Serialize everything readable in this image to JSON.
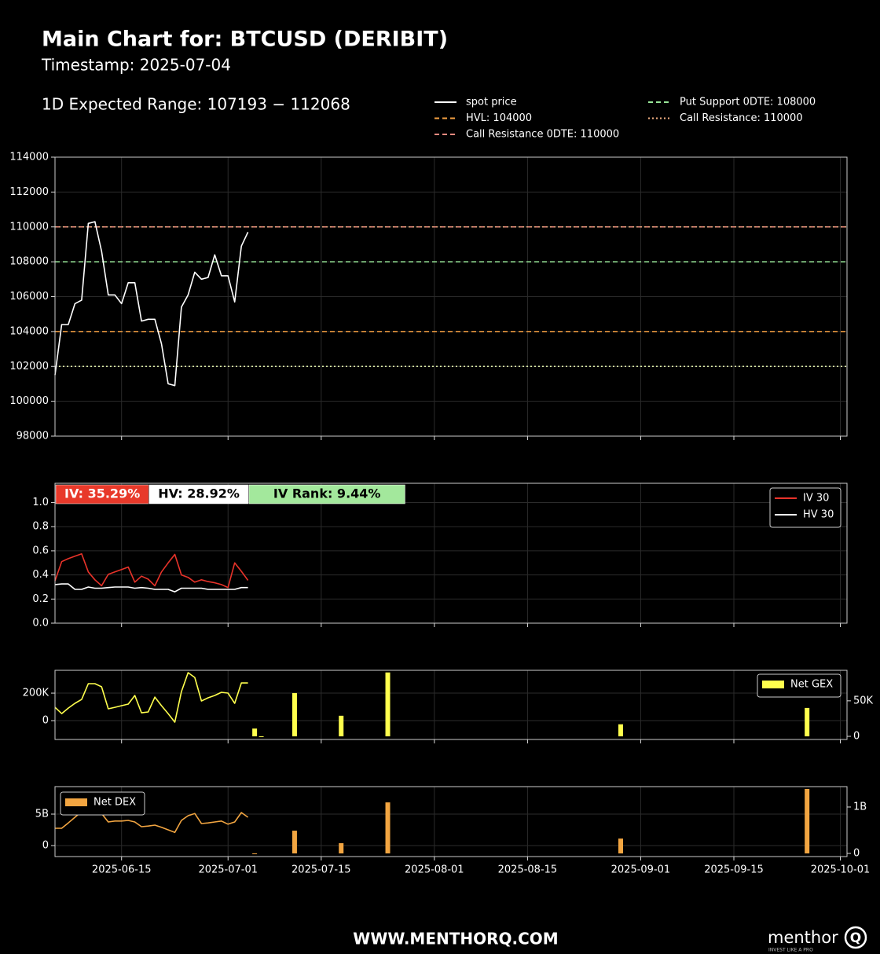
{
  "chart_data": [
    {
      "type": "line",
      "title": "Main Chart for: BTCUSD (DERIBIT)",
      "subtitle": "Timestamp: 2025-07-04",
      "annotation": "1D Expected Range: 107193 − 112068",
      "xlim": [
        "2025-06-05",
        "2025-10-02"
      ],
      "ylim": [
        98000,
        114000
      ],
      "yticks": [
        98000,
        100000,
        102000,
        104000,
        106000,
        108000,
        110000,
        112000,
        114000
      ],
      "grid": true,
      "x": [
        "2025-06-05",
        "2025-06-06",
        "2025-06-07",
        "2025-06-08",
        "2025-06-09",
        "2025-06-10",
        "2025-06-11",
        "2025-06-12",
        "2025-06-13",
        "2025-06-14",
        "2025-06-15",
        "2025-06-16",
        "2025-06-17",
        "2025-06-18",
        "2025-06-19",
        "2025-06-20",
        "2025-06-21",
        "2025-06-22",
        "2025-06-23",
        "2025-06-24",
        "2025-06-25",
        "2025-06-26",
        "2025-06-27",
        "2025-06-28",
        "2025-06-29",
        "2025-06-30",
        "2025-07-01",
        "2025-07-02",
        "2025-07-03",
        "2025-07-04"
      ],
      "series": [
        {
          "name": "spot price",
          "color": "#ffffff",
          "kind": "line",
          "values": [
            101500,
            104400,
            104400,
            105600,
            105800,
            110200,
            110300,
            108600,
            106100,
            106100,
            105600,
            106800,
            106800,
            104600,
            104700,
            104700,
            103300,
            101000,
            100900,
            105400,
            106100,
            107400,
            107000,
            107100,
            108400,
            107200,
            107200,
            105700,
            108900,
            109700
          ]
        }
      ],
      "levels": [
        {
          "name": "HVL: 104000",
          "value": 104000,
          "color": "#f5a142",
          "style": "dashed"
        },
        {
          "name": "Call Resistance 0DTE: 110000",
          "value": 110000,
          "color": "#f08a80",
          "style": "dashed"
        },
        {
          "name": "Put Support 0DTE: 108000",
          "value": 108000,
          "color": "#98e698",
          "style": "dashed"
        },
        {
          "name": "Call Resistance: 110000",
          "value": 110000,
          "color": "#f4b183",
          "style": "dotted"
        },
        {
          "value": 102000,
          "color": "#e0f0a8",
          "style": "dotted"
        }
      ]
    },
    {
      "type": "line",
      "xlim": [
        "2025-06-05",
        "2025-10-02"
      ],
      "ylim": [
        0,
        1.16
      ],
      "yticks": [
        {
          "value": 0,
          "label": "0.0"
        },
        0.2,
        0.4,
        0.6,
        0.8,
        {
          "value": 1,
          "label": "1.0"
        }
      ],
      "grid": true,
      "legend": "upper right",
      "badges": [
        {
          "text": "IV: 35.29%",
          "color": "#e8392a",
          "text_color": "#ffffff"
        },
        {
          "text": "HV: 28.92%",
          "color": "#ffffff",
          "text_color": "#000000"
        },
        {
          "text": "IV Rank: 9.44%",
          "color": "#a3e89c",
          "text_color": "#000000"
        }
      ],
      "x": [
        "2025-06-05",
        "2025-06-06",
        "2025-06-07",
        "2025-06-08",
        "2025-06-09",
        "2025-06-10",
        "2025-06-11",
        "2025-06-12",
        "2025-06-13",
        "2025-06-14",
        "2025-06-15",
        "2025-06-16",
        "2025-06-17",
        "2025-06-18",
        "2025-06-19",
        "2025-06-20",
        "2025-06-21",
        "2025-06-22",
        "2025-06-23",
        "2025-06-24",
        "2025-06-25",
        "2025-06-26",
        "2025-06-27",
        "2025-06-28",
        "2025-06-29",
        "2025-06-30",
        "2025-07-01",
        "2025-07-02",
        "2025-07-03",
        "2025-07-04"
      ],
      "series": [
        {
          "name": "IV 30",
          "color": "#e8332a",
          "kind": "line",
          "values": [
            0.35,
            0.51,
            0.535,
            0.555,
            0.575,
            0.425,
            0.36,
            0.31,
            0.405,
            0.425,
            0.445,
            0.465,
            0.34,
            0.39,
            0.365,
            0.31,
            0.425,
            0.5,
            0.57,
            0.4,
            0.38,
            0.34,
            0.36,
            0.345,
            0.335,
            0.32,
            0.295,
            0.5,
            0.43,
            0.355
          ]
        },
        {
          "name": "HV 30",
          "color": "#ffffff",
          "kind": "line",
          "values": [
            0.32,
            0.325,
            0.325,
            0.28,
            0.28,
            0.3,
            0.29,
            0.29,
            0.295,
            0.3,
            0.3,
            0.3,
            0.29,
            0.295,
            0.29,
            0.28,
            0.28,
            0.28,
            0.26,
            0.29,
            0.29,
            0.29,
            0.29,
            0.28,
            0.28,
            0.28,
            0.28,
            0.28,
            0.295,
            0.295
          ]
        }
      ]
    },
    {
      "type": "bar",
      "xlim": [
        "2025-06-05",
        "2025-10-02"
      ],
      "ylim": [
        -137000,
        366000
      ],
      "y2lim": [
        -4400,
        93000
      ],
      "yticks": [
        0,
        {
          "value": 200000,
          "label": "200K"
        }
      ],
      "y2ticks": [
        0,
        {
          "value": 50000,
          "label": "50K"
        }
      ],
      "grid": true,
      "legend": "upper right",
      "series": [
        {
          "color": "#ffff4d",
          "kind": "line",
          "x": [
            "2025-06-05",
            "2025-06-06",
            "2025-06-07",
            "2025-06-08",
            "2025-06-09",
            "2025-06-10",
            "2025-06-11",
            "2025-06-12",
            "2025-06-13",
            "2025-06-14",
            "2025-06-15",
            "2025-06-16",
            "2025-06-17",
            "2025-06-18",
            "2025-06-19",
            "2025-06-20",
            "2025-06-21",
            "2025-06-22",
            "2025-06-23",
            "2025-06-24",
            "2025-06-25",
            "2025-06-26",
            "2025-06-27",
            "2025-06-28",
            "2025-06-29",
            "2025-06-30",
            "2025-07-01",
            "2025-07-02",
            "2025-07-03",
            "2025-07-04"
          ],
          "values": [
            97000,
            51000,
            91000,
            126000,
            154000,
            269000,
            269000,
            246000,
            86000,
            97000,
            109000,
            120000,
            183000,
            57000,
            63000,
            171000,
            109000,
            51000,
            -11000,
            211000,
            349000,
            314000,
            143000,
            166000,
            183000,
            206000,
            200000,
            126000,
            274000,
            274000
          ]
        },
        {
          "name": "Net GEX",
          "color": "#ffff4d",
          "kind": "bar",
          "axis": "y2",
          "x": [
            "2025-07-05",
            "2025-07-06",
            "2025-07-11",
            "2025-07-18",
            "2025-07-25",
            "2025-08-29",
            "2025-09-26"
          ],
          "values": [
            11000,
            -1000,
            61000,
            29000,
            90000,
            17000,
            40000
          ]
        }
      ]
    },
    {
      "type": "bar",
      "xlim": [
        "2025-06-05",
        "2025-10-02"
      ],
      "ylim": [
        -1750000000,
        9375000000
      ],
      "y2lim": [
        -68000000,
        1440000000
      ],
      "yticks": [
        0,
        {
          "value": 5000000000,
          "label": "5B"
        }
      ],
      "y2ticks": [
        0,
        {
          "value": 1000000000,
          "label": "1B"
        }
      ],
      "grid": true,
      "legend": "upper left",
      "xticks": [
        "2025-06-15",
        "2025-07-01",
        "2025-07-15",
        "2025-08-01",
        "2025-08-15",
        "2025-09-01",
        "2025-09-15",
        "2025-10-01"
      ],
      "series": [
        {
          "color": "#f2a541",
          "kind": "line",
          "x": [
            "2025-06-05",
            "2025-06-06",
            "2025-06-07",
            "2025-06-08",
            "2025-06-09",
            "2025-06-10",
            "2025-06-11",
            "2025-06-12",
            "2025-06-13",
            "2025-06-14",
            "2025-06-15",
            "2025-06-16",
            "2025-06-17",
            "2025-06-18",
            "2025-06-19",
            "2025-06-20",
            "2025-06-21",
            "2025-06-22",
            "2025-06-23",
            "2025-06-24",
            "2025-06-25",
            "2025-06-26",
            "2025-06-27",
            "2025-06-28",
            "2025-06-29",
            "2025-06-30",
            "2025-07-01",
            "2025-07-02",
            "2025-07-03",
            "2025-07-04"
          ],
          "values": [
            2750000000,
            2750000000,
            3600000000,
            4500000000,
            5400000000,
            6500000000,
            6100000000,
            5100000000,
            3750000000,
            3900000000,
            3900000000,
            4000000000,
            3750000000,
            3000000000,
            3100000000,
            3250000000,
            2900000000,
            2500000000,
            2100000000,
            4000000000,
            4750000000,
            5100000000,
            3500000000,
            3600000000,
            3750000000,
            3900000000,
            3400000000,
            3750000000,
            5250000000,
            4500000000
          ]
        },
        {
          "name": "Net DEX",
          "color": "#f2a541",
          "kind": "bar",
          "axis": "y2",
          "x": [
            "2025-07-05",
            "2025-07-11",
            "2025-07-18",
            "2025-07-25",
            "2025-08-29",
            "2025-09-26"
          ],
          "values": [
            -10000000,
            490000000,
            220000000,
            1100000000,
            320000000,
            1390000000
          ]
        }
      ]
    }
  ],
  "footer": {
    "site": "WWW.MENTHORQ.COM",
    "logo": "menthor",
    "logo_mark": "Q",
    "tagline": "INVEST LIKE A PRO"
  }
}
